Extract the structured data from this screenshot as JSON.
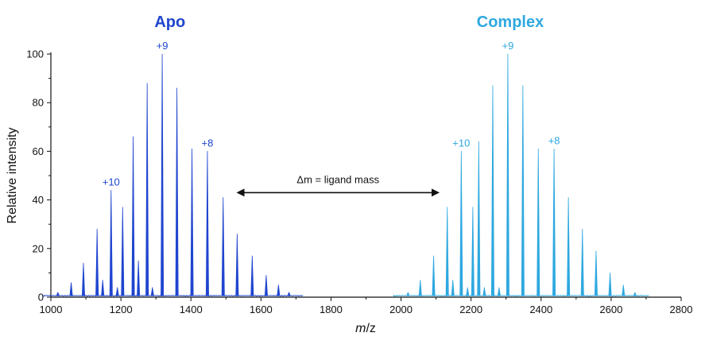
{
  "chart_data": {
    "type": "line",
    "xlabel_italic": "m",
    "xlabel_rest": "/z",
    "ylabel": "Relative intensity",
    "xlim": [
      1000,
      2800
    ],
    "ylim": [
      0,
      100
    ],
    "xticks": [
      1000,
      1200,
      1400,
      1600,
      1800,
      2000,
      2200,
      2400,
      2600,
      2800
    ],
    "yticks": [
      0,
      20,
      40,
      60,
      80,
      100
    ],
    "grid": false,
    "legend": "none",
    "series": [
      {
        "name": "Apo",
        "color": "#1f45cf",
        "peaks": [
          {
            "x": 1020,
            "y": 2
          },
          {
            "x": 1058,
            "y": 6
          },
          {
            "x": 1093,
            "y": 14
          },
          {
            "x": 1132,
            "y": 28
          },
          {
            "x": 1148,
            "y": 7
          },
          {
            "x": 1172,
            "y": 44
          },
          {
            "x": 1190,
            "y": 4
          },
          {
            "x": 1205,
            "y": 37
          },
          {
            "x": 1235,
            "y": 66
          },
          {
            "x": 1250,
            "y": 15
          },
          {
            "x": 1275,
            "y": 88
          },
          {
            "x": 1290,
            "y": 4
          },
          {
            "x": 1318,
            "y": 100
          },
          {
            "x": 1360,
            "y": 86
          },
          {
            "x": 1403,
            "y": 61
          },
          {
            "x": 1447,
            "y": 60
          },
          {
            "x": 1492,
            "y": 41
          },
          {
            "x": 1532,
            "y": 26
          },
          {
            "x": 1575,
            "y": 17
          },
          {
            "x": 1615,
            "y": 9
          },
          {
            "x": 1650,
            "y": 5
          },
          {
            "x": 1680,
            "y": 2
          }
        ]
      },
      {
        "name": "Complex",
        "color": "#2ea8e0",
        "peaks": [
          {
            "x": 2020,
            "y": 2
          },
          {
            "x": 2055,
            "y": 7
          },
          {
            "x": 2093,
            "y": 17
          },
          {
            "x": 2132,
            "y": 37
          },
          {
            "x": 2148,
            "y": 7
          },
          {
            "x": 2172,
            "y": 60
          },
          {
            "x": 2190,
            "y": 4
          },
          {
            "x": 2205,
            "y": 37
          },
          {
            "x": 2222,
            "y": 64
          },
          {
            "x": 2238,
            "y": 4
          },
          {
            "x": 2262,
            "y": 87
          },
          {
            "x": 2280,
            "y": 4
          },
          {
            "x": 2305,
            "y": 100
          },
          {
            "x": 2348,
            "y": 87
          },
          {
            "x": 2392,
            "y": 61
          },
          {
            "x": 2437,
            "y": 61
          },
          {
            "x": 2478,
            "y": 41
          },
          {
            "x": 2518,
            "y": 28
          },
          {
            "x": 2557,
            "y": 19
          },
          {
            "x": 2597,
            "y": 10
          },
          {
            "x": 2635,
            "y": 5
          },
          {
            "x": 2668,
            "y": 2
          }
        ]
      }
    ],
    "titles": [
      {
        "text": "Apo",
        "x": 1340,
        "color": "#1f45cf"
      },
      {
        "text": "Complex",
        "x": 2312,
        "color": "#2ea8e0"
      }
    ],
    "charge_labels": [
      {
        "text": "+10",
        "x": 1172,
        "y": 44,
        "color": "#1f45cf"
      },
      {
        "text": "+9",
        "x": 1318,
        "y": 100,
        "color": "#1f45cf"
      },
      {
        "text": "+8",
        "x": 1447,
        "y": 60,
        "color": "#1f45cf"
      },
      {
        "text": "+10",
        "x": 2172,
        "y": 60,
        "color": "#2ea8e0"
      },
      {
        "text": "+9",
        "x": 2305,
        "y": 100,
        "color": "#2ea8e0"
      },
      {
        "text": "+8",
        "x": 2437,
        "y": 61,
        "color": "#2ea8e0"
      }
    ],
    "annotation": {
      "text": "Δm = ligand mass",
      "x_start": 1530,
      "x_end": 2110,
      "y": 43
    }
  }
}
